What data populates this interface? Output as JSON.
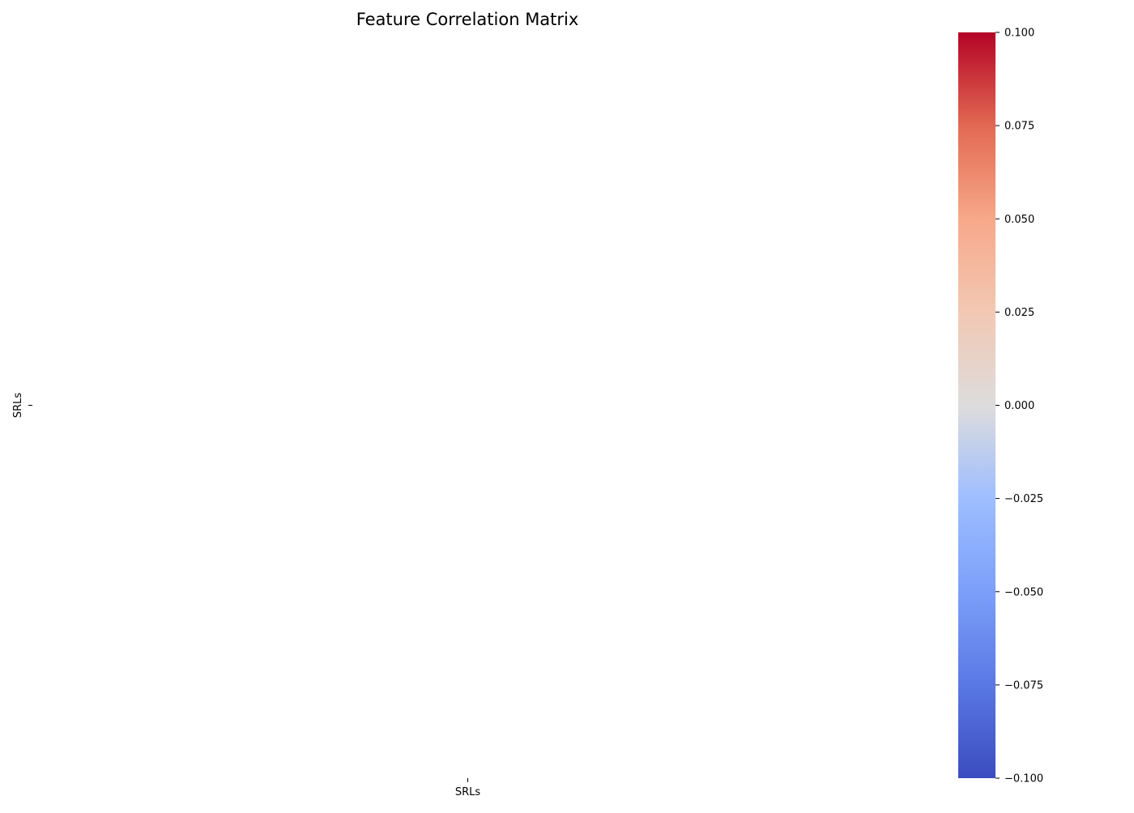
{
  "chart_data": {
    "type": "heatmap",
    "title": "Feature Correlation Matrix",
    "x_categories": [
      "SRLs"
    ],
    "y_categories": [
      "SRLs"
    ],
    "values": [
      [
        null
      ]
    ],
    "colormap": "coolwarm",
    "colorbar": {
      "vmin": -0.1,
      "vmax": 0.1,
      "ticks": [
        0.1,
        0.075,
        0.05,
        0.025,
        0.0,
        -0.025,
        -0.05,
        -0.075,
        -0.1
      ],
      "tick_labels": [
        "0.100",
        "0.075",
        "0.050",
        "0.025",
        "0.000",
        "−0.025",
        "−0.050",
        "−0.075",
        "−0.100"
      ],
      "colors": {
        "min": "#3b4cc0",
        "mid": "#dddcdc",
        "max": "#b40426"
      }
    }
  }
}
